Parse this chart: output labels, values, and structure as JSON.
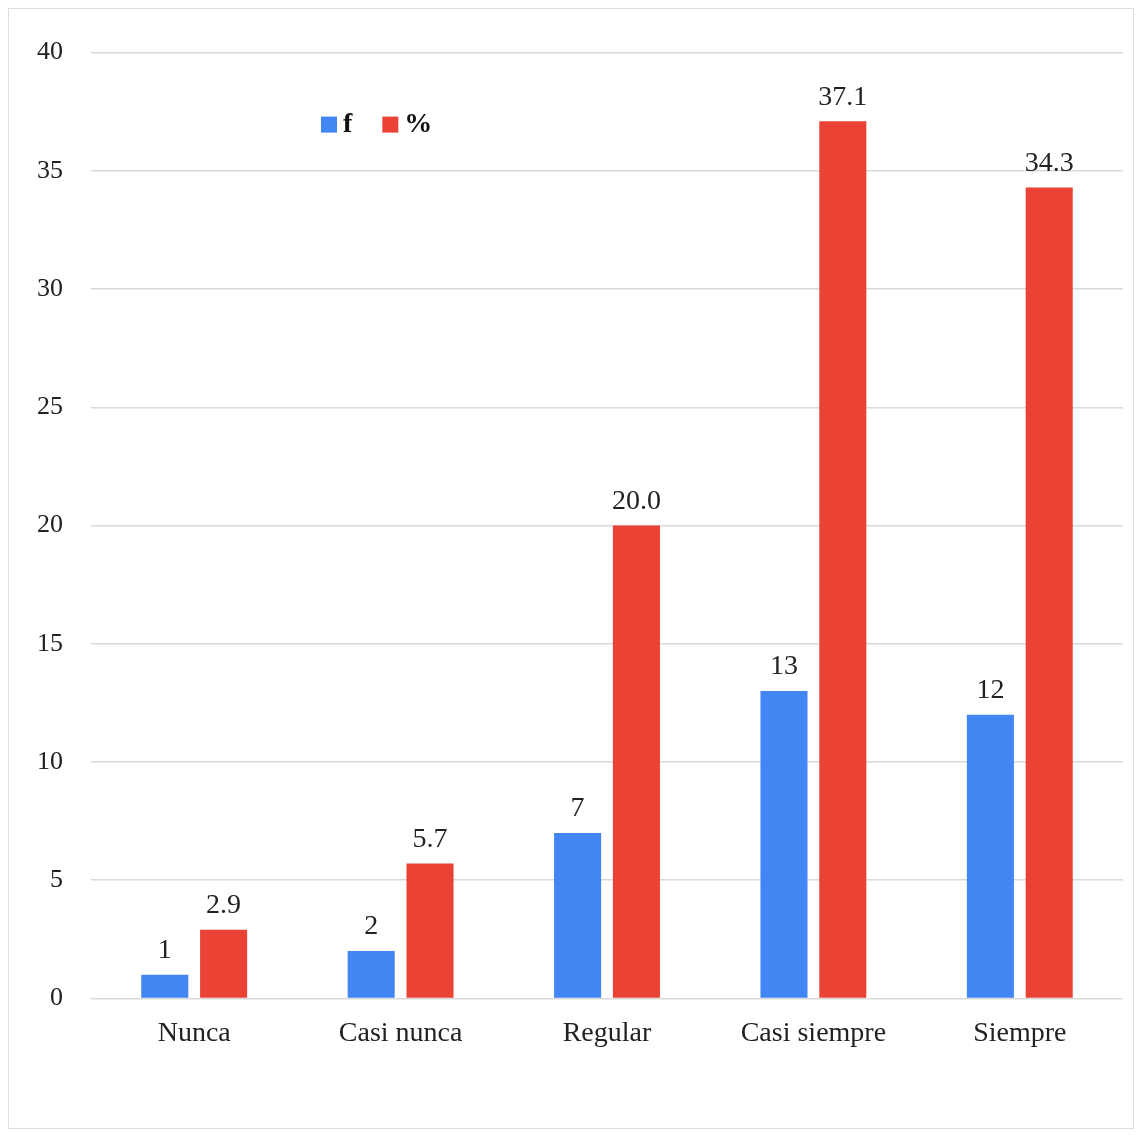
{
  "chart_data": {
    "type": "bar",
    "categories": [
      "Nunca",
      "Casi nunca",
      "Regular",
      "Casi siempre",
      "Siempre"
    ],
    "series": [
      {
        "name": "f",
        "color": "#4286f4",
        "values": [
          1,
          2,
          7,
          13,
          12
        ],
        "value_labels": [
          "1",
          "2",
          "7",
          "13",
          "12"
        ]
      },
      {
        "name": "%",
        "color": "#ea4335",
        "values": [
          2.9,
          5.7,
          20.0,
          37.1,
          34.3
        ],
        "value_labels": [
          "2.9",
          "5.7",
          "20.0",
          "37.1",
          "34.3"
        ]
      }
    ],
    "ylim": [
      0,
      40
    ],
    "yticks": [
      0,
      5,
      10,
      15,
      20,
      25,
      30,
      35,
      40
    ],
    "grid": "y",
    "legend": "top left"
  }
}
